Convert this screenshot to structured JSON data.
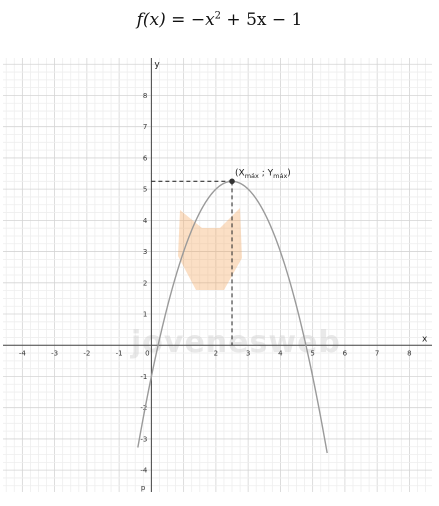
{
  "equation": {
    "lhs": "f(x) = −x",
    "exponent": "2",
    "rhs": " + 5x − 1"
  },
  "watermark": "jovenesweb",
  "chart_data": {
    "type": "line",
    "title": "f(x) = −x² + 5x − 1",
    "xlabel": "x",
    "ylabel": "y",
    "xlim": [
      -4.6,
      8.7
    ],
    "ylim": [
      -4.7,
      9.2
    ],
    "grid": true,
    "x_ticks": [
      -4,
      -3,
      -2,
      -1,
      0,
      1,
      2,
      3,
      4,
      5,
      6,
      7,
      8
    ],
    "x_tick_labels": [
      "-4",
      "-3",
      "-2",
      "-1",
      "0",
      "",
      "2",
      "3",
      "4",
      "5",
      "6",
      "7",
      "8"
    ],
    "y_ticks": [
      -4,
      -3,
      -2,
      -1,
      1,
      2,
      3,
      4,
      5,
      6,
      7,
      8
    ],
    "y_tick_labels": [
      "-4",
      "-3",
      "-2",
      "-1",
      "1",
      "2",
      "3",
      "4",
      "5",
      "6",
      "7",
      "8"
    ],
    "function": {
      "a": -1,
      "b": 5,
      "c": -1,
      "x_range": [
        -0.42,
        5.45
      ]
    },
    "curve_label": "p",
    "line_color": "#9a9a9a",
    "vertex": {
      "x": 2.5,
      "y": 5.25,
      "label_open": "(X",
      "label_xsub": "máx",
      "label_sep": " ; Y",
      "label_ysub": "máx",
      "label_close": ")"
    }
  }
}
